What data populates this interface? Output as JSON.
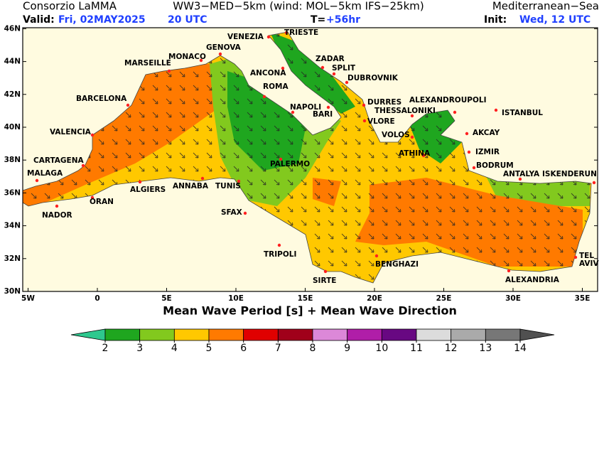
{
  "header": {
    "line1": {
      "left": "Consorzio LaMMA",
      "center": "WW3−MED−5km (wind: MOL−5km IFS−25km)",
      "right": "Mediterranean−Sea"
    },
    "line2": {
      "valid_label": "Valid:",
      "valid_date": "Fri, 02MAY2025",
      "valid_hour": "20 UTC",
      "t_label": "T=",
      "t_value": "+56hr",
      "init_label": "Init:",
      "init_value": "Wed, 12 UTC"
    }
  },
  "map": {
    "title": "Mean Wave Period [s] + Mean Wave Direction",
    "lat_ticks": [
      {
        "value": 46,
        "label": "46N"
      },
      {
        "value": 44,
        "label": "44N"
      },
      {
        "value": 42,
        "label": "42N"
      },
      {
        "value": 40,
        "label": "40N"
      },
      {
        "value": 38,
        "label": "38N"
      },
      {
        "value": 36,
        "label": "36N"
      },
      {
        "value": 34,
        "label": "34N"
      },
      {
        "value": 32,
        "label": "32N"
      },
      {
        "value": 30,
        "label": "30N"
      }
    ],
    "lon_ticks": [
      {
        "value": -5,
        "label": "5W"
      },
      {
        "value": 0,
        "label": "0"
      },
      {
        "value": 5,
        "label": "5E"
      },
      {
        "value": 10,
        "label": "10E"
      },
      {
        "value": 15,
        "label": "15E"
      },
      {
        "value": 20,
        "label": "20E"
      },
      {
        "value": 25,
        "label": "25E"
      },
      {
        "value": 30,
        "label": "30E"
      },
      {
        "value": 35,
        "label": "35E"
      }
    ],
    "cities": [
      "TRIESTE",
      "VENEZIA",
      "GENOVA",
      "MONACO",
      "MARSEILLE",
      "ZADAR",
      "ANCONA",
      "SPLIT",
      "DUBROVNIK",
      "ROMA",
      "BARCELONA",
      "NAPOLI",
      "BARI",
      "DURRES",
      "ALEXANDROUPOLI",
      "THESSALONIKI",
      "ISTANBUL",
      "VLORE",
      "VALENCIA",
      "VOLOS",
      "AKCAY",
      "ATHINA",
      "IZMIR",
      "CARTAGENA",
      "PALERMO",
      "BODRUM",
      "MALAGA",
      "ANTALYA",
      "ISKENDERUN",
      "ALGIERS",
      "ANNABA",
      "TUNIS",
      "ORAN",
      "NADOR",
      "SFAX",
      "TRIPOLI",
      "TEL AVIV",
      "BENGHAZI",
      "SIRTE",
      "ALEXANDRIA"
    ]
  },
  "legend": {
    "levels": [
      2,
      3,
      4,
      5,
      6,
      7,
      8,
      9,
      10,
      11,
      12,
      13,
      14
    ],
    "colors": [
      "#2ec88e",
      "#1fa61f",
      "#82c91e",
      "#ffc800",
      "#ff7a00",
      "#e00000",
      "#a0001a",
      "#dc88d8",
      "#b01ea8",
      "#680882",
      "#dcdcdc",
      "#aaaaaa",
      "#777777",
      "#505050"
    ]
  }
}
